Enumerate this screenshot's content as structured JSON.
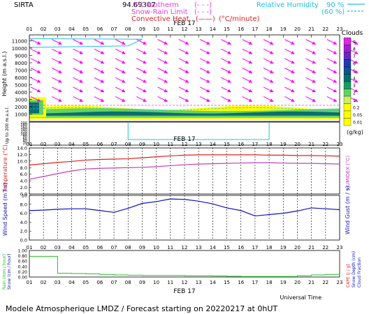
{
  "header": {
    "station": "SIRTA",
    "station_code": "94.69307",
    "legend_left": [
      {
        "label": "0°C isotherm",
        "color": "#e040e0",
        "style": "dashed"
      },
      {
        "label": "Snow-Rain Limit",
        "color": "#e040e0",
        "style": "dashed"
      },
      {
        "label": "Convective Heat.",
        "color": "#e02020",
        "style": "solid",
        "unit": "(°C/minute)"
      }
    ],
    "legend_right": [
      {
        "label": "Relative Humidity",
        "value": "90 %",
        "color": "#20c0e0",
        "style": "solid"
      },
      {
        "value": "(60 %)",
        "color": "#20c0e0",
        "style": "dashed"
      }
    ]
  },
  "hours": [
    "01",
    "02",
    "03",
    "04",
    "05",
    "06",
    "07",
    "08",
    "09",
    "10",
    "11",
    "12",
    "13",
    "14",
    "15",
    "16",
    "17",
    "18",
    "19",
    "20",
    "21",
    "22",
    "23"
  ],
  "date_label": "FEB 17",
  "footer": {
    "universal_time": "Universal Time",
    "caption": "Modele Atmospherique LMDZ / Forecast starting on 20220217 at 0hUT"
  },
  "colors": {
    "wind_arrow": "#ff00ff",
    "temperature": "#e02020",
    "humidex": "#c040c0",
    "wind": "#1010c0",
    "rain": "#20c020",
    "cloud_scale": [
      "#ffff00",
      "#c8f064",
      "#64d264",
      "#14a060",
      "#0a6e6e",
      "#145096",
      "#1e3cb4",
      "#6428c8",
      "#a01ed2",
      "#dc28e6"
    ]
  },
  "chart_data": [
    {
      "type": "heatmap",
      "name": "clouds-cross-section",
      "ylabel": "Height (m a.s.l.)",
      "ylabel2": "Up to 200 m a.s.l.",
      "y_ticks": [
        "11000",
        "10000",
        "9000",
        "8000",
        "7000",
        "6000",
        "5000",
        "4000",
        "3000",
        "2000",
        "1000"
      ],
      "y2_ticks": [
        "200",
        "180",
        "160",
        "140",
        "120",
        "100",
        "80",
        "60",
        "40",
        "20"
      ],
      "legend": {
        "title": "Clouds",
        "levels": [
          "9",
          "8",
          "7",
          "6",
          "5",
          "4",
          "3",
          "2",
          "1",
          "0.2",
          "0.05",
          "0.01"
        ],
        "unit": "(g/kg)"
      },
      "wind_arrows": "southeasterly vectors at all levels",
      "cloud_layer_m": [
        500,
        1500
      ],
      "freezing_level_m": 2200
    },
    {
      "type": "line",
      "name": "temperature-humidex",
      "ylabel": "Temperature (°C)",
      "ylabel2": "HUMIDEX (°C)",
      "ylim": [
        0,
        14
      ],
      "y_ticks": [
        "14.0",
        "12.0",
        "10.0",
        "8.0",
        "6.0",
        "4.0",
        "2.0",
        "0.0"
      ],
      "series": [
        {
          "name": "Temperature",
          "values": [
            8.8,
            9.2,
            9.6,
            9.9,
            10.3,
            10.5,
            10.6,
            10.7,
            11.0,
            11.3,
            11.6,
            11.8,
            11.9,
            11.9,
            11.9,
            11.9,
            11.9,
            11.8,
            11.8,
            11.7,
            11.7,
            11.6,
            11.5
          ]
        },
        {
          "name": "HUMIDEX",
          "values": [
            4.5,
            5.3,
            6.2,
            7.0,
            7.6,
            7.8,
            7.9,
            8.0,
            8.1,
            8.3,
            8.6,
            8.9,
            9.1,
            9.2,
            9.3,
            9.4,
            9.5,
            9.5,
            9.4,
            9.3,
            9.3,
            9.2,
            9.1
          ]
        }
      ]
    },
    {
      "type": "line",
      "name": "wind",
      "ylabel": "Wind Speed (m / s)",
      "ylabel2": "Wind Gust (m / s)",
      "ylim": [
        0,
        10
      ],
      "y_ticks": [
        "10",
        "8.0",
        "6.0",
        "4.0",
        "2.0",
        "0.0"
      ],
      "series": [
        {
          "name": "Wind Speed",
          "values": [
            6.6,
            6.7,
            6.9,
            7.0,
            7.0,
            6.6,
            6.2,
            7.1,
            8.2,
            8.6,
            9.2,
            9.1,
            8.7,
            8.1,
            7.2,
            6.6,
            5.4,
            5.7,
            6.0,
            6.5,
            7.2,
            7.0,
            6.8
          ]
        }
      ]
    },
    {
      "type": "line",
      "name": "precipitation",
      "ylabel": "Rain (mm / hour)",
      "ylabel_b": "Snow (cm / hour)",
      "ylabel2": "CAPE (J / g)",
      "ylabel2_b": "Snow Depth (cm)",
      "ylabel2_c": "Cloud Fraction",
      "ylim": [
        0,
        1
      ],
      "y_ticks": [
        "1.00",
        "0.80",
        "0.60",
        "0.40",
        "0.20",
        "0.00"
      ],
      "series": [
        {
          "name": "Rain",
          "values": [
            0.78,
            0.78,
            0.14,
            0.13,
            0.12,
            0.1,
            0.08,
            0.07,
            0.06,
            0.06,
            0.06,
            0.05,
            0.05,
            0.04,
            0.03,
            0.02,
            0.02,
            0.02,
            0.02,
            0.05,
            0.08,
            0.1,
            0.12
          ]
        }
      ]
    }
  ]
}
